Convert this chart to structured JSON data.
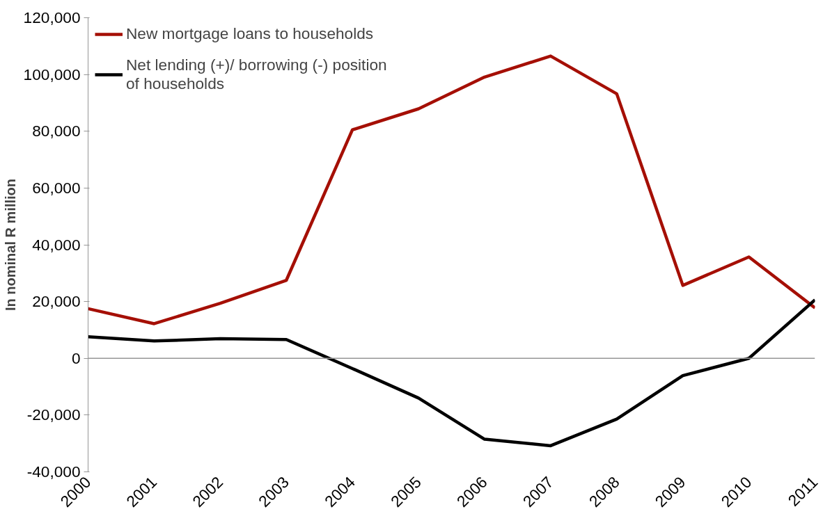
{
  "chart_data": {
    "type": "line",
    "ylabel": "In nominal R million",
    "x": [
      2000,
      2001,
      2002,
      2003,
      2004,
      2005,
      2006,
      2007,
      2008,
      2009,
      2010,
      2011
    ],
    "xlim": [
      2000,
      2011
    ],
    "xticks": [
      2000,
      2001,
      2002,
      2003,
      2004,
      2005,
      2006,
      2007,
      2008,
      2009,
      2010,
      2011
    ],
    "ylim": [
      -40000,
      120000
    ],
    "yticks": [
      {
        "value": -40000,
        "label": "-40,000"
      },
      {
        "value": -20000,
        "label": "-20,000"
      },
      {
        "value": 0,
        "label": "0"
      },
      {
        "value": 20000,
        "label": "20,000"
      },
      {
        "value": 40000,
        "label": "40,000"
      },
      {
        "value": 60000,
        "label": "60,000"
      },
      {
        "value": 80000,
        "label": "80,000"
      },
      {
        "value": 100000,
        "label": "100,000"
      },
      {
        "value": 120000,
        "label": "120,000"
      }
    ],
    "series": [
      {
        "name": "New mortgage loans to households",
        "color": "#a50f05",
        "values": [
          17500,
          12200,
          19400,
          27500,
          80500,
          87900,
          99100,
          106500,
          93200,
          25700,
          35700,
          17800
        ]
      },
      {
        "name": "Net lending (+)/ borrowing (-) position of households",
        "color": "#000000",
        "values": [
          7600,
          6100,
          6900,
          6600,
          -3600,
          -14000,
          -28500,
          -30800,
          -21400,
          -6100,
          0,
          20600
        ]
      }
    ],
    "ref_lines": [
      {
        "axis": "y",
        "value": 0,
        "color": "#969696"
      }
    ],
    "grid": false,
    "legend": "top left",
    "marker": "none",
    "line_style": "solid"
  }
}
